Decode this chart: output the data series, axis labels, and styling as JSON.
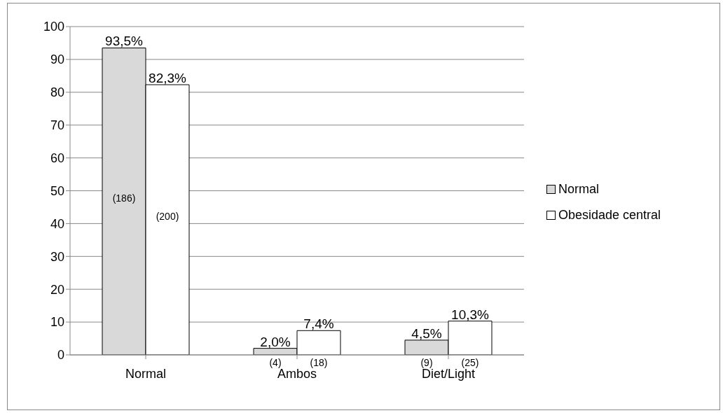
{
  "chart_data": {
    "type": "bar",
    "categories": [
      "Normal",
      "Ambos",
      "Diet/Light"
    ],
    "series": [
      {
        "name": "Normal",
        "color": "#d9d9d9",
        "values": [
          93.5,
          2.0,
          4.5
        ],
        "value_labels": [
          "93,5%",
          "2,0%",
          "4,5%"
        ]
      },
      {
        "name": "Obesidade central",
        "color": "#ffffff",
        "values": [
          82.3,
          7.4,
          10.3
        ],
        "value_labels": [
          "82,3%",
          "7,4%",
          "10,3%"
        ]
      }
    ],
    "ylim": [
      0,
      100
    ],
    "yticks": [
      0,
      10,
      20,
      30,
      40,
      50,
      60,
      70,
      80,
      90,
      100
    ],
    "grid": "y",
    "legend": "right",
    "annotations": [
      "(186)",
      "(200)",
      "(4)",
      "(18)",
      "(9)",
      "(25)"
    ]
  }
}
